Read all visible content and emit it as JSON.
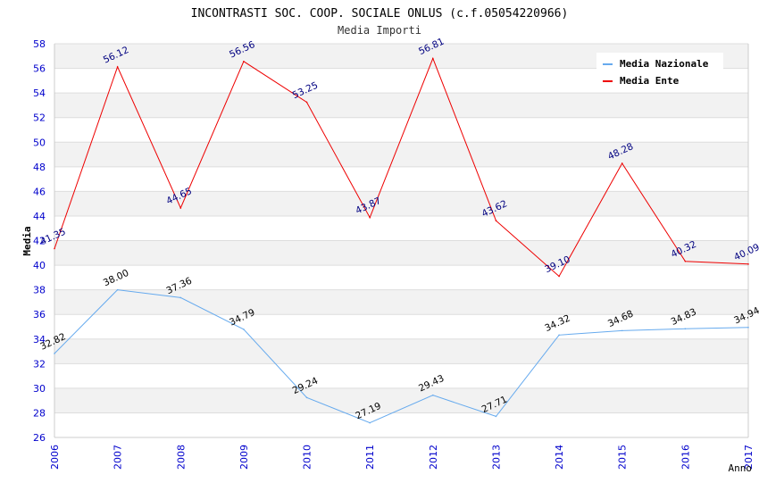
{
  "chart_data": {
    "type": "line",
    "title": "INCONTRASTI SOC. COOP. SOCIALE ONLUS (c.f.05054220966)",
    "subtitle": "Media Importi",
    "xlabel": "Anno",
    "ylabel": "Media",
    "x": [
      "2006",
      "2007",
      "2008",
      "2009",
      "2010",
      "2011",
      "2012",
      "2013",
      "2014",
      "2015",
      "2016",
      "2017"
    ],
    "ylim": [
      26,
      58
    ],
    "yticks": [
      "26",
      "28",
      "30",
      "32",
      "34",
      "36",
      "38",
      "40",
      "42",
      "44",
      "46",
      "48",
      "50",
      "52",
      "54",
      "56",
      "58"
    ],
    "grid": "horizontal bands",
    "legend_position": "top-right",
    "series": [
      {
        "name": "Media Nazionale",
        "color": "#66aaee",
        "label_color": "#000000",
        "values": [
          32.82,
          38.0,
          37.36,
          34.79,
          29.24,
          27.19,
          29.43,
          27.71,
          34.32,
          34.68,
          34.83,
          34.94
        ],
        "labels": [
          "32.82",
          "38.00",
          "37.36",
          "34.79",
          "29.24",
          "27.19",
          "29.43",
          "27.71",
          "34.32",
          "34.68",
          "34.83",
          "34.94"
        ]
      },
      {
        "name": "Media Ente",
        "color": "#ee0000",
        "label_color": "#000080",
        "values": [
          41.35,
          56.12,
          44.65,
          56.56,
          53.25,
          43.87,
          56.81,
          43.62,
          39.1,
          48.28,
          40.32,
          40.09
        ],
        "labels": [
          "41.35",
          "56.12",
          "44.65",
          "56.56",
          "53.25",
          "43.87",
          "56.81",
          "43.62",
          "39.10",
          "48.28",
          "40.32",
          "40.09"
        ]
      }
    ]
  }
}
